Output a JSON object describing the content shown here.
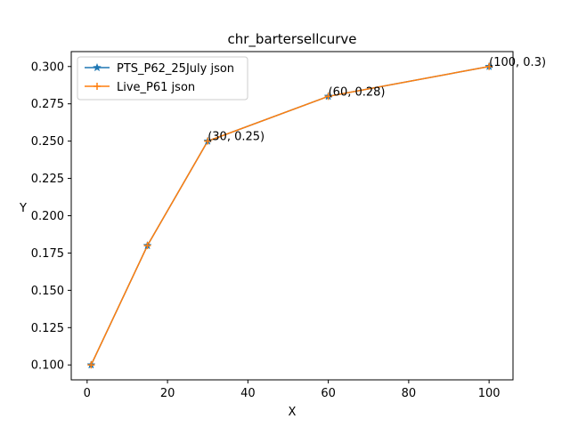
{
  "chart_data": {
    "type": "line",
    "title": "chr_bartersellcurve",
    "xlabel": "X",
    "ylabel": "Y",
    "xlim": [
      -3.95,
      105.95
    ],
    "ylim": [
      0.09,
      0.31
    ],
    "xticks": [
      0,
      20,
      40,
      60,
      80,
      100
    ],
    "xtick_labels": [
      "0",
      "20",
      "40",
      "60",
      "80",
      "100"
    ],
    "yticks": [
      0.1,
      0.125,
      0.15,
      0.175,
      0.2,
      0.225,
      0.25,
      0.275,
      0.3
    ],
    "ytick_labels": [
      "0.100",
      "0.125",
      "0.150",
      "0.175",
      "0.200",
      "0.225",
      "0.250",
      "0.275",
      "0.300"
    ],
    "grid": false,
    "legend_position": "upper left",
    "series": [
      {
        "name": "PTS_P62_25July json",
        "color": "#1f77b4",
        "marker": "star",
        "x": [
          1,
          15,
          30,
          60,
          100
        ],
        "y": [
          0.1,
          0.18,
          0.25,
          0.28,
          0.3
        ]
      },
      {
        "name": "Live_P61 json",
        "color": "#ff7f0e",
        "marker": "plus",
        "x": [
          1,
          15,
          30,
          60,
          100
        ],
        "y": [
          0.1,
          0.18,
          0.25,
          0.28,
          0.3
        ]
      }
    ],
    "annotations": [
      {
        "text": "(30, 0.25)",
        "x": 30,
        "y": 0.25
      },
      {
        "text": "(60, 0.28)",
        "x": 60,
        "y": 0.28
      },
      {
        "text": "(100, 0.3)",
        "x": 100,
        "y": 0.3
      }
    ]
  }
}
